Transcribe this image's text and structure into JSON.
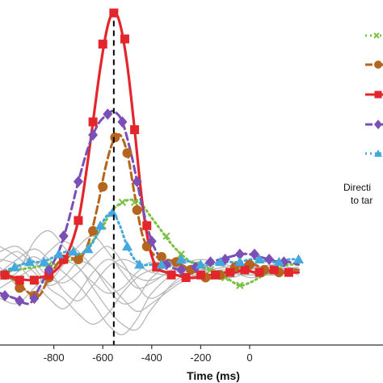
{
  "chart_data": {
    "type": "line",
    "xlabel": "Time (ms)",
    "ylabel": "",
    "title": "",
    "xlim": [
      -1020,
      545
    ],
    "ylim": [
      -0.28,
      1.05
    ],
    "x_ticks": [
      -800,
      -600,
      -400,
      -200,
      0
    ],
    "x_tick_labels": [
      "-800",
      "-600",
      "-400",
      "-200",
      "0"
    ],
    "vline_x": -555,
    "grid": false,
    "legend_position": "right",
    "legend_text": [
      "Directi",
      "to tar"
    ],
    "background_curves_color": "#b8b8b8",
    "background_curves": [
      [
        [
          -1020,
          -0.03
        ],
        [
          -950,
          0.02
        ],
        [
          -880,
          0.06
        ],
        [
          -820,
          0.01
        ],
        [
          -760,
          -0.07
        ],
        [
          -700,
          -0.11
        ],
        [
          -640,
          -0.05
        ],
        [
          -580,
          0.02
        ],
        [
          -520,
          0.05
        ],
        [
          -460,
          0.03
        ],
        [
          -400,
          0.0
        ],
        [
          -300,
          -0.01
        ],
        [
          -200,
          0.02
        ],
        [
          -100,
          0.0
        ],
        [
          0,
          0.02
        ],
        [
          100,
          0.0
        ],
        [
          200,
          0.01
        ]
      ],
      [
        [
          -1020,
          0.05
        ],
        [
          -950,
          0.03
        ],
        [
          -880,
          -0.04
        ],
        [
          -820,
          -0.1
        ],
        [
          -760,
          -0.14
        ],
        [
          -700,
          -0.08
        ],
        [
          -640,
          0.0
        ],
        [
          -580,
          0.05
        ],
        [
          -520,
          0.02
        ],
        [
          -460,
          -0.02
        ],
        [
          -400,
          -0.03
        ],
        [
          -300,
          0.01
        ],
        [
          -200,
          0.03
        ],
        [
          -100,
          -0.01
        ],
        [
          0,
          0.01
        ],
        [
          100,
          0.02
        ],
        [
          200,
          0.0
        ]
      ],
      [
        [
          -1020,
          0.0
        ],
        [
          -950,
          0.05
        ],
        [
          -880,
          0.09
        ],
        [
          -820,
          0.05
        ],
        [
          -760,
          0.0
        ],
        [
          -700,
          -0.05
        ],
        [
          -640,
          -0.12
        ],
        [
          -580,
          -0.2
        ],
        [
          -520,
          -0.24
        ],
        [
          -460,
          -0.18
        ],
        [
          -400,
          -0.08
        ],
        [
          -300,
          0.0
        ],
        [
          -200,
          0.01
        ],
        [
          -100,
          0.0
        ],
        [
          0,
          -0.01
        ],
        [
          100,
          0.01
        ],
        [
          200,
          0.02
        ]
      ],
      [
        [
          -1020,
          0.08
        ],
        [
          -950,
          0.1
        ],
        [
          -880,
          0.04
        ],
        [
          -820,
          -0.02
        ],
        [
          -760,
          -0.04
        ],
        [
          -700,
          0.0
        ],
        [
          -640,
          0.06
        ],
        [
          -580,
          0.1
        ],
        [
          -520,
          0.04
        ],
        [
          -460,
          -0.05
        ],
        [
          -400,
          -0.1
        ],
        [
          -300,
          -0.04
        ],
        [
          -200,
          0.02
        ],
        [
          -100,
          0.03
        ],
        [
          0,
          0.0
        ],
        [
          100,
          -0.01
        ],
        [
          200,
          0.01
        ]
      ],
      [
        [
          -1020,
          -0.06
        ],
        [
          -950,
          -0.02
        ],
        [
          -880,
          0.02
        ],
        [
          -820,
          0.08
        ],
        [
          -760,
          0.12
        ],
        [
          -700,
          0.08
        ],
        [
          -640,
          0.02
        ],
        [
          -580,
          -0.04
        ],
        [
          -520,
          -0.1
        ],
        [
          -460,
          -0.15
        ],
        [
          -400,
          -0.12
        ],
        [
          -300,
          -0.05
        ],
        [
          -200,
          0.0
        ],
        [
          -100,
          0.02
        ],
        [
          0,
          0.03
        ],
        [
          100,
          0.0
        ],
        [
          200,
          0.0
        ]
      ],
      [
        [
          -1020,
          0.02
        ],
        [
          -950,
          -0.05
        ],
        [
          -880,
          -0.08
        ],
        [
          -820,
          -0.04
        ],
        [
          -760,
          0.03
        ],
        [
          -700,
          0.1
        ],
        [
          -640,
          0.14
        ],
        [
          -580,
          0.08
        ],
        [
          -520,
          0.0
        ],
        [
          -460,
          -0.06
        ],
        [
          -400,
          -0.04
        ],
        [
          -300,
          0.02
        ],
        [
          -200,
          0.05
        ],
        [
          -100,
          0.02
        ],
        [
          0,
          -0.02
        ],
        [
          100,
          0.0
        ],
        [
          200,
          0.02
        ]
      ],
      [
        [
          -1020,
          -0.1
        ],
        [
          -950,
          -0.12
        ],
        [
          -880,
          -0.06
        ],
        [
          -820,
          0.0
        ],
        [
          -760,
          0.04
        ],
        [
          -700,
          0.02
        ],
        [
          -640,
          -0.06
        ],
        [
          -580,
          -0.14
        ],
        [
          -520,
          -0.2
        ],
        [
          -460,
          -0.22
        ],
        [
          -400,
          -0.14
        ],
        [
          -300,
          -0.03
        ],
        [
          -200,
          0.01
        ],
        [
          -100,
          0.0
        ],
        [
          0,
          0.01
        ],
        [
          100,
          0.03
        ],
        [
          200,
          0.01
        ]
      ],
      [
        [
          -1020,
          0.1
        ],
        [
          -950,
          0.06
        ],
        [
          -880,
          0.0
        ],
        [
          -820,
          -0.05
        ],
        [
          -760,
          -0.02
        ],
        [
          -700,
          0.04
        ],
        [
          -640,
          0.02
        ],
        [
          -580,
          -0.06
        ],
        [
          -520,
          -0.12
        ],
        [
          -460,
          -0.1
        ],
        [
          -400,
          -0.02
        ],
        [
          -300,
          0.04
        ],
        [
          -200,
          0.03
        ],
        [
          -100,
          -0.02
        ],
        [
          0,
          0.0
        ],
        [
          100,
          0.02
        ],
        [
          200,
          -0.01
        ]
      ],
      [
        [
          -1020,
          -0.02
        ],
        [
          -950,
          0.0
        ],
        [
          -880,
          0.12
        ],
        [
          -820,
          0.16
        ],
        [
          -760,
          0.1
        ],
        [
          -700,
          0.02
        ],
        [
          -640,
          -0.04
        ],
        [
          -580,
          -0.08
        ],
        [
          -520,
          -0.06
        ],
        [
          -460,
          0.0
        ],
        [
          -400,
          0.04
        ],
        [
          -300,
          0.02
        ],
        [
          -200,
          -0.02
        ],
        [
          -100,
          0.0
        ],
        [
          0,
          0.02
        ],
        [
          100,
          0.01
        ],
        [
          200,
          0.0
        ]
      ],
      [
        [
          -1020,
          0.04
        ],
        [
          -950,
          0.08
        ],
        [
          -880,
          0.02
        ],
        [
          -820,
          -0.06
        ],
        [
          -760,
          -0.1
        ],
        [
          -700,
          -0.16
        ],
        [
          -640,
          -0.2
        ],
        [
          -580,
          -0.16
        ],
        [
          -520,
          -0.08
        ],
        [
          -460,
          -0.02
        ],
        [
          -400,
          0.01
        ],
        [
          -300,
          0.03
        ],
        [
          -200,
          0.0
        ],
        [
          -100,
          0.01
        ],
        [
          0,
          -0.01
        ],
        [
          100,
          0.0
        ],
        [
          200,
          0.02
        ]
      ]
    ],
    "series": [
      {
        "color": "#7ac143",
        "line_style": "dotted",
        "marker": "x",
        "x": [
          -1020,
          -950,
          -880,
          -820,
          -760,
          -700,
          -650,
          -600,
          -560,
          -520,
          -480,
          -440,
          -400,
          -360,
          -320,
          -280,
          -240,
          -200,
          -160,
          -120,
          -80,
          -40,
          0,
          40,
          80,
          120,
          160,
          200
        ],
        "y": [
          0.0,
          0.01,
          0.02,
          0.03,
          0.04,
          0.06,
          0.11,
          0.18,
          0.24,
          0.27,
          0.28,
          0.26,
          0.21,
          0.16,
          0.11,
          0.07,
          0.04,
          0.02,
          0.01,
          0.0,
          -0.03,
          -0.05,
          -0.04,
          -0.02,
          0.0,
          0.02,
          0.03,
          0.03
        ],
        "marker_x": [
          -820,
          -700,
          -600,
          -520,
          -470,
          -340,
          -280,
          -220,
          -160,
          -100,
          -40
        ],
        "marker_y": [
          0.03,
          0.06,
          0.18,
          0.27,
          0.27,
          0.14,
          0.07,
          0.03,
          0.01,
          -0.02,
          -0.05
        ]
      },
      {
        "color": "#b5651d",
        "line_style": "dashed",
        "marker": "circle",
        "x": [
          -1020,
          -960,
          -900,
          -860,
          -820,
          -780,
          -740,
          -700,
          -660,
          -620,
          -590,
          -560,
          -530,
          -500,
          -470,
          -440,
          -410,
          -380,
          -340,
          -300,
          -260,
          -220,
          -180,
          -140,
          -100,
          -60,
          -20,
          20,
          60,
          100,
          140,
          180,
          200
        ],
        "y": [
          0.0,
          -0.03,
          -0.08,
          -0.09,
          -0.02,
          0.04,
          0.06,
          0.05,
          0.11,
          0.26,
          0.4,
          0.5,
          0.53,
          0.46,
          0.3,
          0.15,
          0.09,
          0.06,
          0.05,
          0.04,
          0.02,
          0.0,
          -0.02,
          -0.02,
          0.0,
          0.02,
          0.03,
          0.03,
          0.01,
          0.0,
          0.0,
          0.01,
          0.01
        ],
        "marker_x": [
          -1000,
          -940,
          -880,
          -820,
          -760,
          -700,
          -640,
          -600,
          -550,
          -500,
          -460,
          -420,
          -360,
          -300,
          -240,
          -180,
          -120,
          -60,
          0,
          60,
          120
        ],
        "marker_y": [
          -0.01,
          -0.06,
          -0.09,
          -0.02,
          0.05,
          0.05,
          0.16,
          0.33,
          0.52,
          0.46,
          0.24,
          0.1,
          0.06,
          0.04,
          0.01,
          -0.02,
          -0.01,
          0.02,
          0.03,
          0.01,
          0.0
        ]
      },
      {
        "color": "#e3262b",
        "line_style": "solid",
        "marker": "square",
        "x": [
          -1020,
          -960,
          -900,
          -860,
          -820,
          -780,
          -740,
          -700,
          -670,
          -640,
          -610,
          -580,
          -555,
          -530,
          -500,
          -470,
          -440,
          -410,
          -380,
          -340,
          -300,
          -260,
          -220,
          -180,
          -140,
          -100,
          -60,
          -20,
          20,
          60,
          100,
          140,
          180,
          200
        ],
        "y": [
          0.0,
          -0.02,
          -0.03,
          -0.02,
          -0.01,
          0.02,
          0.08,
          0.2,
          0.37,
          0.58,
          0.79,
          0.95,
          1.0,
          0.96,
          0.8,
          0.55,
          0.28,
          0.1,
          0.02,
          0.0,
          -0.01,
          -0.02,
          -0.02,
          -0.01,
          -0.01,
          0.0,
          0.0,
          0.01,
          0.0,
          0.0,
          0.01,
          0.0,
          0.0,
          0.0
        ],
        "marker_x": [
          -1000,
          -940,
          -880,
          -820,
          -760,
          -700,
          -640,
          -600,
          -555,
          -510,
          -470,
          -420,
          -380,
          -320,
          -260,
          -200,
          -140,
          -80,
          -20,
          40,
          100,
          160
        ],
        "marker_y": [
          -0.01,
          -0.03,
          -0.03,
          -0.01,
          0.05,
          0.2,
          0.58,
          0.88,
          1.0,
          0.9,
          0.55,
          0.18,
          0.02,
          -0.01,
          -0.02,
          -0.01,
          -0.01,
          0.0,
          0.01,
          0.0,
          0.01,
          0.0
        ]
      },
      {
        "color": "#7b4fb4",
        "line_style": "dashed",
        "marker": "diamond",
        "x": [
          -1020,
          -960,
          -900,
          -860,
          -820,
          -780,
          -740,
          -700,
          -660,
          -620,
          -580,
          -555,
          -520,
          -480,
          -440,
          -400,
          -360,
          -320,
          -280,
          -240,
          -200,
          -160,
          -120,
          -80,
          -40,
          0,
          40,
          80,
          120,
          160,
          200
        ],
        "y": [
          -0.08,
          -0.1,
          -0.12,
          -0.06,
          0.01,
          0.08,
          0.2,
          0.35,
          0.48,
          0.57,
          0.61,
          0.62,
          0.58,
          0.44,
          0.26,
          0.12,
          0.05,
          0.02,
          0.01,
          0.02,
          0.03,
          0.04,
          0.05,
          0.06,
          0.07,
          0.07,
          0.06,
          0.05,
          0.04,
          0.04,
          0.03
        ],
        "marker_x": [
          -1000,
          -940,
          -880,
          -820,
          -760,
          -700,
          -640,
          -580,
          -520,
          -460,
          -400,
          -340,
          -280,
          -220,
          -160,
          -100,
          -40,
          20,
          80,
          140
        ],
        "marker_y": [
          -0.09,
          -0.11,
          -0.1,
          0.01,
          0.14,
          0.35,
          0.53,
          0.61,
          0.58,
          0.35,
          0.12,
          0.03,
          0.01,
          0.02,
          0.04,
          0.05,
          0.07,
          0.07,
          0.05,
          0.04
        ]
      },
      {
        "color": "#43a8dd",
        "line_style": "dash-dot",
        "marker": "triangle",
        "x": [
          -1020,
          -960,
          -900,
          -860,
          -820,
          -780,
          -740,
          -700,
          -660,
          -620,
          -590,
          -560,
          -530,
          -500,
          -470,
          -440,
          -400,
          -360,
          -320,
          -280,
          -240,
          -200,
          -160,
          -120,
          -80,
          -40,
          0,
          40,
          80,
          120,
          160,
          200
        ],
        "y": [
          0.0,
          0.02,
          0.04,
          0.04,
          0.05,
          0.07,
          0.08,
          0.07,
          0.09,
          0.15,
          0.21,
          0.23,
          0.18,
          0.1,
          0.05,
          0.03,
          0.03,
          0.03,
          0.04,
          0.05,
          0.04,
          0.03,
          0.03,
          0.04,
          0.04,
          0.04,
          0.05,
          0.05,
          0.04,
          0.04,
          0.05,
          0.05
        ],
        "marker_x": [
          -960,
          -900,
          -840,
          -780,
          -720,
          -660,
          -610,
          -560,
          -500,
          -450,
          -360,
          -280,
          -200,
          -120,
          -40,
          40,
          120,
          200
        ],
        "marker_y": [
          0.02,
          0.04,
          0.04,
          0.07,
          0.08,
          0.09,
          0.18,
          0.23,
          0.1,
          0.03,
          0.03,
          0.05,
          0.03,
          0.04,
          0.04,
          0.05,
          0.04,
          0.05
        ]
      }
    ]
  }
}
